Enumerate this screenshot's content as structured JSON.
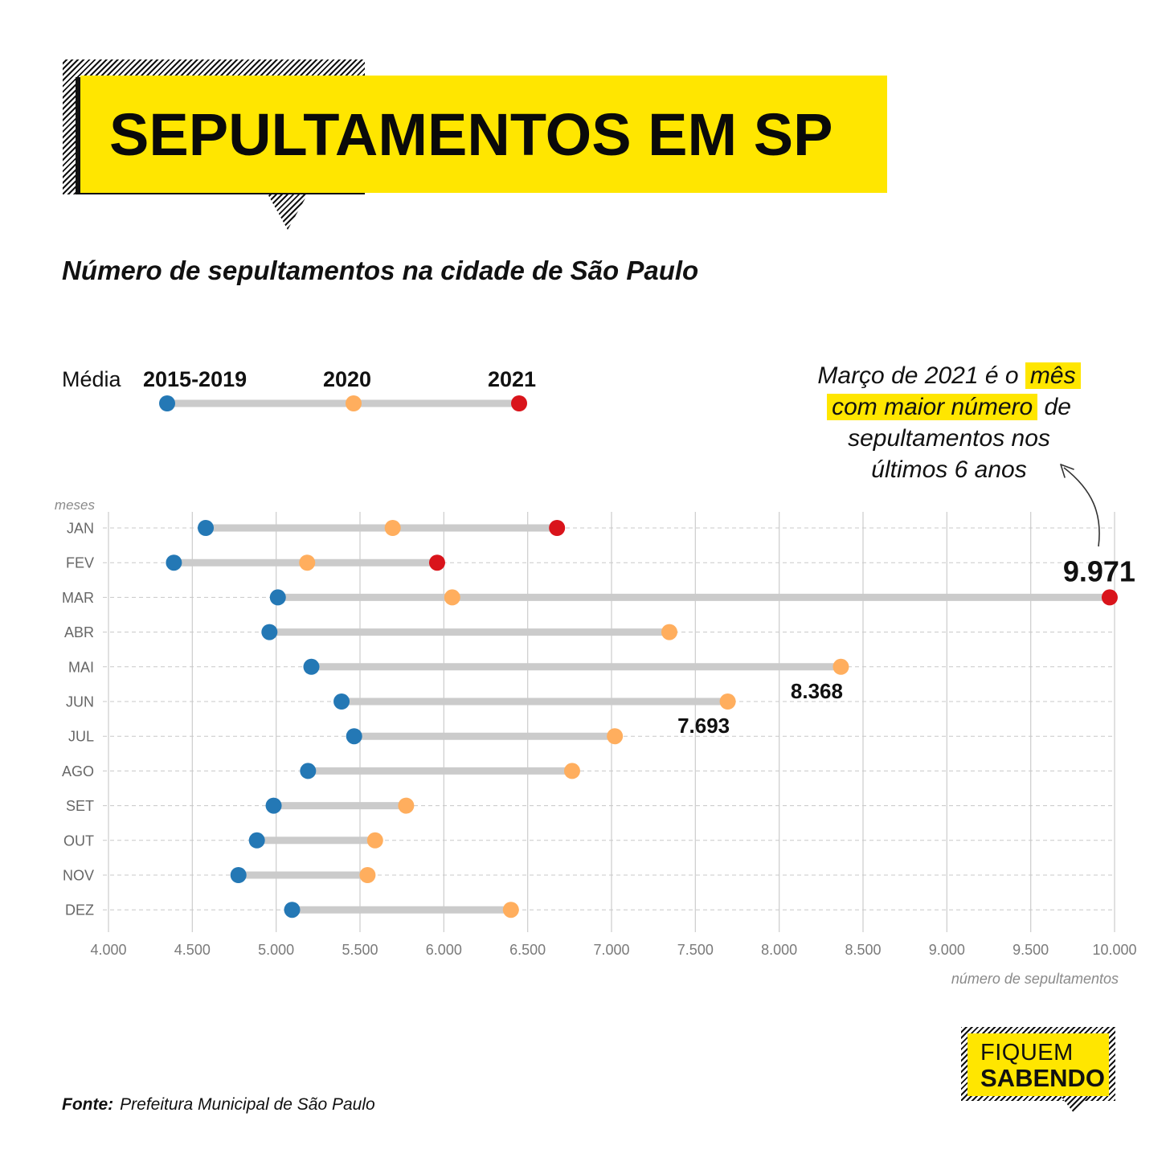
{
  "title": "SEPULTAMENTOS EM SP",
  "subtitle": "Número de sepultamentos na cidade de São Paulo",
  "legend": {
    "prefix": "Média",
    "series_labels": [
      "2015-2019",
      "2020",
      "2021"
    ]
  },
  "annotation": {
    "part1": "Março de 2021 é o",
    "highlight1": "mês",
    "highlight2": "com maior número",
    "part2": "de",
    "part3": "sepultamentos nos",
    "part4": "últimos 6 anos"
  },
  "source": {
    "label": "Fonte:",
    "text": "Prefeitura Municipal de São Paulo"
  },
  "logo": {
    "line1": "FIQUEM",
    "line2": "SABENDO"
  },
  "colors": {
    "avg": "#2478B5",
    "y2020": "#FFAE5E",
    "y2021": "#D9141B",
    "accent": "#FFE600",
    "bar": "#CBCBCB",
    "grid": "#CFCFCF"
  },
  "chart_data": {
    "type": "dumbbell",
    "xlabel": "número de sepultamentos",
    "ylabel": "meses",
    "xlim": [
      4000,
      10000
    ],
    "xticks": [
      4000,
      4500,
      5000,
      5500,
      6000,
      6500,
      7000,
      7500,
      8000,
      8500,
      9000,
      9500,
      10000
    ],
    "xtick_labels": [
      "4.000",
      "4.500",
      "5.000",
      "5.500",
      "6.000",
      "6.500",
      "7.000",
      "7.500",
      "8.000",
      "8.500",
      "9.000",
      "9.500",
      "10.000"
    ],
    "categories": [
      "JAN",
      "FEV",
      "MAR",
      "ABR",
      "MAI",
      "JUN",
      "JUL",
      "AGO",
      "SET",
      "OUT",
      "NOV",
      "DEZ"
    ],
    "series": [
      {
        "name": "Média 2015-2019",
        "color_key": "avg",
        "values": [
          4580,
          4390,
          5010,
          4960,
          5210,
          5390,
          5465,
          5190,
          4985,
          4885,
          4775,
          5095
        ]
      },
      {
        "name": "2020",
        "color_key": "y2020",
        "values": [
          5695,
          5185,
          6050,
          7345,
          8368,
          7693,
          7020,
          6765,
          5775,
          5590,
          5545,
          6400
        ]
      },
      {
        "name": "2021",
        "color_key": "y2021",
        "values": [
          6675,
          5960,
          9971,
          null,
          null,
          null,
          null,
          null,
          null,
          null,
          null,
          null
        ]
      }
    ],
    "data_labels": [
      {
        "category": "MAR",
        "series": "2021",
        "text": "9.971"
      },
      {
        "category": "MAI",
        "series": "2020",
        "text": "8.368"
      },
      {
        "category": "JUN",
        "series": "2020",
        "text": "7.693"
      }
    ]
  }
}
